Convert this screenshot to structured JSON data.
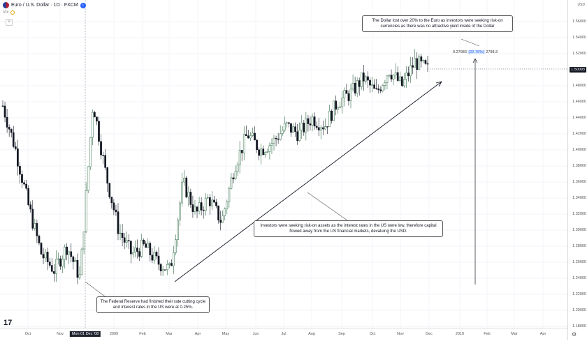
{
  "header": {
    "symbol": "Euro / U.S. Dollar · 1D · FXCM",
    "volume_label": "Vol"
  },
  "price_axis": {
    "currency": "USD",
    "labels": [
      "1.56000",
      "1.54000",
      "1.52000",
      "1.50000",
      "1.48000",
      "1.46000",
      "1.44000",
      "1.42000",
      "1.40000",
      "1.38000",
      "1.36000",
      "1.34000",
      "1.32000",
      "1.30000",
      "1.28000",
      "1.26000",
      "1.24000",
      "1.22000",
      "1.20000",
      "1.18000"
    ],
    "current_price": "1.50093"
  },
  "time_axis": {
    "labels": [
      "Oct",
      "Nov",
      "Mon 01 Dec '08",
      "2009",
      "Feb",
      "Mar",
      "Apr",
      "May",
      "Jun",
      "Jul",
      "Aug",
      "Sep",
      "Oct",
      "Nov",
      "Dec",
      "2010",
      "Feb",
      "Mar",
      "Apr"
    ],
    "highlighted": "Mon 01 Dec '08"
  },
  "annotations": {
    "fed_note": "The Federal Reserve had finished their rate cutting cycle and interest rates in the US were at 0.25%.",
    "investors_note": "Investors were seeking risk-on assets as the interest rates in the US were low, therefore capital flowed away from the US financial markets, devaluing the USD.",
    "dollar_note": "The Dollar lost over 20% to the Euro as investors were seeking risk-on currencies as there was no attractive yield inside of the Dollar",
    "measure_value": "0.27983",
    "measure_pct": "(22.76%)",
    "measure_ticks": "2798.3"
  },
  "chart_data": {
    "type": "candlestick",
    "x": [
      "2008-10",
      "2008-11",
      "2008-12",
      "2009-01",
      "2009-02",
      "2009-03",
      "2009-04",
      "2009-05",
      "2009-06",
      "2009-07",
      "2009-08",
      "2009-09",
      "2009-10",
      "2009-11",
      "2009-12"
    ],
    "close_path": [
      1.455,
      1.4,
      1.33,
      1.27,
      1.25,
      1.28,
      1.24,
      1.46,
      1.37,
      1.3,
      1.27,
      1.28,
      1.26,
      1.25,
      1.36,
      1.32,
      1.34,
      1.31,
      1.38,
      1.42,
      1.4,
      1.41,
      1.43,
      1.42,
      1.44,
      1.43,
      1.46,
      1.47,
      1.49,
      1.47,
      1.5,
      1.48,
      1.51,
      1.5
    ],
    "ylim": [
      1.18,
      1.57
    ],
    "colors": {
      "up": "#2f6b45",
      "down": "#131722"
    }
  },
  "colors": {
    "line": "#131722",
    "accent": "#2962ff"
  }
}
